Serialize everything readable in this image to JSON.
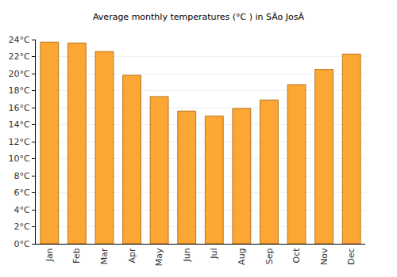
{
  "chart_data": {
    "type": "bar",
    "title": "Average monthly temperatures (°C ) in SÃo JosÃ",
    "categories": [
      "Jan",
      "Feb",
      "Mar",
      "Apr",
      "May",
      "Jun",
      "Jul",
      "Aug",
      "Sep",
      "Oct",
      "Nov",
      "Dec"
    ],
    "values": [
      23.7,
      23.6,
      22.6,
      19.8,
      17.3,
      15.6,
      15.0,
      15.9,
      16.9,
      18.7,
      20.5,
      22.3
    ],
    "color": "#fca634",
    "ylim": [
      0,
      24
    ],
    "yticks": [
      {
        "value": 0,
        "label": "0°C"
      },
      {
        "value": 2,
        "label": "2°C"
      },
      {
        "value": 4,
        "label": "4°C"
      },
      {
        "value": 6,
        "label": "6°C"
      },
      {
        "value": 8,
        "label": "8°C"
      },
      {
        "value": 10,
        "label": "10°C"
      },
      {
        "value": 12,
        "label": "12°C"
      },
      {
        "value": 14,
        "label": "14°C"
      },
      {
        "value": 16,
        "label": "16°C"
      },
      {
        "value": 18,
        "label": "18°C"
      },
      {
        "value": 20,
        "label": "20°C"
      },
      {
        "value": 22,
        "label": "22°C"
      },
      {
        "value": 24,
        "label": "24°C"
      }
    ],
    "grid": true
  }
}
